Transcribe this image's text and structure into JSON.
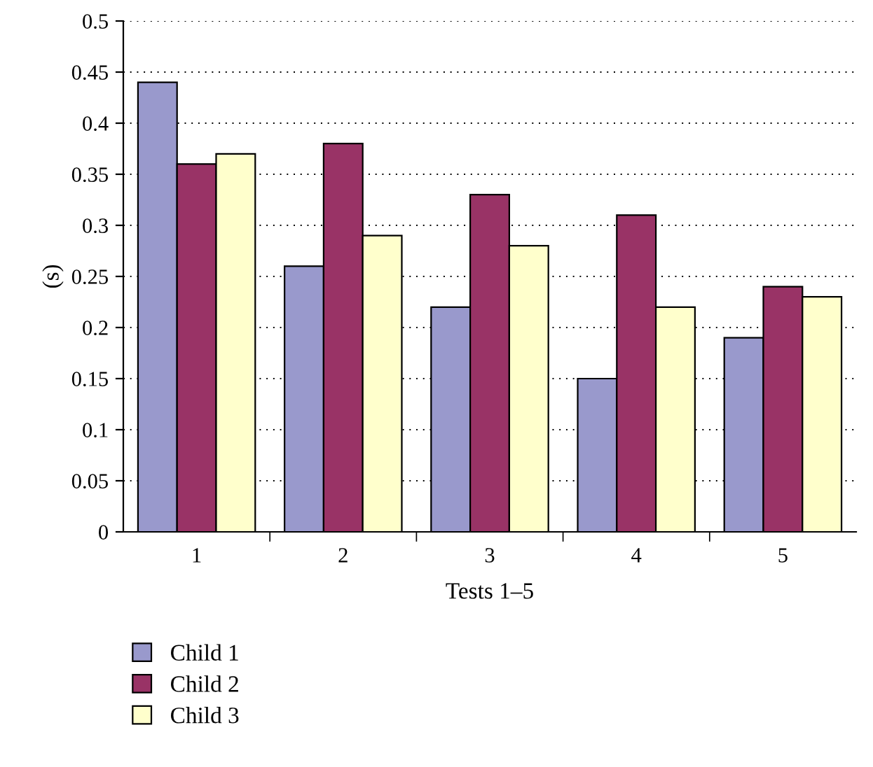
{
  "chart_data": {
    "type": "bar",
    "xlabel": "Tests 1–5",
    "ylabel": "(s)",
    "categories": [
      "1",
      "2",
      "3",
      "4",
      "5"
    ],
    "series": [
      {
        "name": "Child 1",
        "color": "#9999cc",
        "values": [
          0.44,
          0.26,
          0.22,
          0.15,
          0.19
        ]
      },
      {
        "name": "Child 2",
        "color": "#993366",
        "values": [
          0.36,
          0.38,
          0.33,
          0.31,
          0.24
        ]
      },
      {
        "name": "Child 3",
        "color": "#ffffcc",
        "values": [
          0.37,
          0.29,
          0.28,
          0.22,
          0.23
        ]
      }
    ],
    "ylim": [
      0,
      0.5
    ],
    "yticks": [
      0,
      0.05,
      0.1,
      0.15,
      0.2,
      0.25,
      0.3,
      0.35,
      0.4,
      0.45,
      0.5
    ],
    "grid": "y",
    "legend": "bottom"
  }
}
